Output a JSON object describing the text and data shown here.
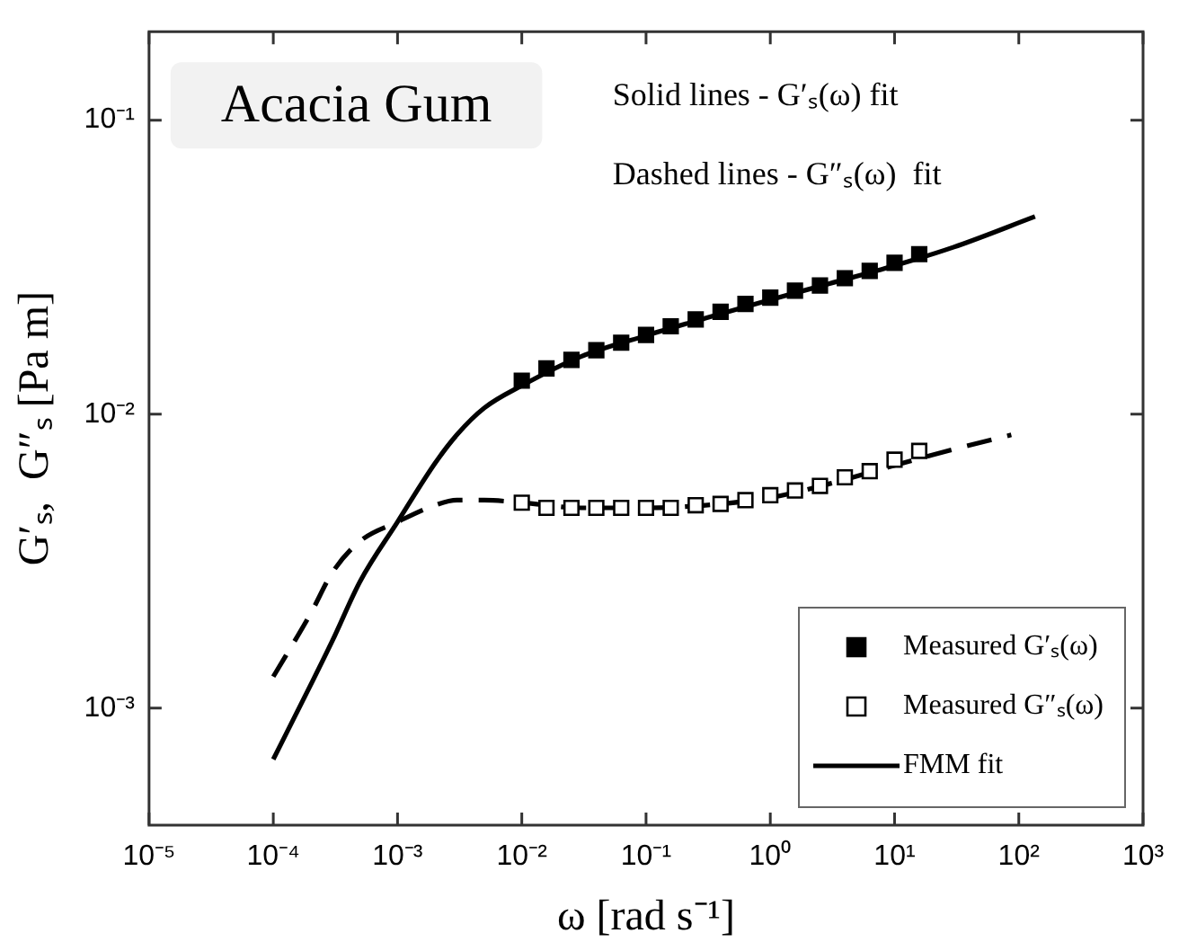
{
  "chart_data": {
    "type": "scatter",
    "xlabel": "ω [rad s⁻¹]",
    "ylabel": "G′ₛ,  G″ₛ [Pa m]",
    "log": "xy",
    "grid": false,
    "legend": "bottom right",
    "xlim": [
      1e-05,
      1000
    ],
    "ylim": [
      0.0004,
      0.2
    ],
    "xticks": [
      {
        "value": 1e-05,
        "label": "10⁻⁵"
      },
      {
        "value": 0.0001,
        "label": "10⁻⁴"
      },
      {
        "value": 0.001,
        "label": "10⁻³"
      },
      {
        "value": 0.01,
        "label": "10⁻²"
      },
      {
        "value": 0.1,
        "label": "10⁻¹"
      },
      {
        "value": 1,
        "label": "10⁰"
      },
      {
        "value": 10,
        "label": "10¹"
      },
      {
        "value": 100,
        "label": "10²"
      },
      {
        "value": 1000,
        "label": "10³"
      }
    ],
    "yticks": [
      {
        "value": 0.001,
        "label": "10⁻³"
      },
      {
        "value": 0.01,
        "label": "10⁻²"
      },
      {
        "value": 0.1,
        "label": "10⁻¹"
      }
    ],
    "annotations": [
      "Acacia Gum",
      "Solid lines - G′ₛ(ω) fit",
      "Dashed lines - G″ₛ(ω)  fit"
    ],
    "series": [
      {
        "name": "Measured G′ₛ(ω)",
        "marker": "square",
        "color": "#000000",
        "x": [
          0.01,
          0.0158,
          0.0251,
          0.0398,
          0.0631,
          0.1,
          0.158,
          0.251,
          0.398,
          0.631,
          1,
          1.58,
          2.51,
          3.98,
          6.31,
          10,
          15.8
        ],
        "values": [
          0.013,
          0.0143,
          0.0153,
          0.0165,
          0.0175,
          0.0186,
          0.0199,
          0.021,
          0.0223,
          0.0237,
          0.0249,
          0.0263,
          0.0274,
          0.029,
          0.0307,
          0.0327,
          0.035
        ]
      },
      {
        "name": "Measured G″ₛ(ω)",
        "marker": "square",
        "color": "#000000",
        "x": [
          0.01,
          0.0158,
          0.0251,
          0.0398,
          0.0631,
          0.1,
          0.158,
          0.251,
          0.398,
          0.631,
          1,
          1.58,
          2.51,
          3.98,
          6.31,
          10,
          15.8
        ],
        "values": [
          0.005,
          0.0048,
          0.0048,
          0.0048,
          0.0048,
          0.0048,
          0.0048,
          0.0049,
          0.00495,
          0.0051,
          0.0053,
          0.0055,
          0.0057,
          0.0061,
          0.0064,
          0.007,
          0.0075
        ]
      },
      {
        "name": "FMM fit",
        "type": "line",
        "marker": "none",
        "line_style": "solid",
        "color": "#000000",
        "x": [
          0.0001,
          0.0002,
          0.0003,
          0.0005,
          0.001,
          0.002,
          0.003,
          0.005,
          0.01,
          0.03,
          0.1,
          0.3,
          1,
          3,
          10,
          30,
          135
        ],
        "values": [
          0.00067,
          0.0012,
          0.0017,
          0.0027,
          0.0043,
          0.0068,
          0.0085,
          0.0105,
          0.0125,
          0.0157,
          0.0185,
          0.0212,
          0.0245,
          0.0278,
          0.032,
          0.037,
          0.047
        ]
      },
      {
        "type": "line",
        "marker": "none",
        "line_style": "dashed",
        "color": "#000000",
        "x": [
          0.0001,
          0.0002,
          0.0003,
          0.0005,
          0.001,
          0.002,
          0.003,
          0.005,
          0.01,
          0.03,
          0.1,
          0.3,
          1,
          3,
          10,
          30,
          87
        ],
        "values": [
          0.00128,
          0.0021,
          0.0029,
          0.0037,
          0.0043,
          0.0049,
          0.0051,
          0.0051,
          0.005,
          0.0048,
          0.0048,
          0.0049,
          0.0052,
          0.0058,
          0.0067,
          0.0076,
          0.0085
        ]
      }
    ]
  }
}
